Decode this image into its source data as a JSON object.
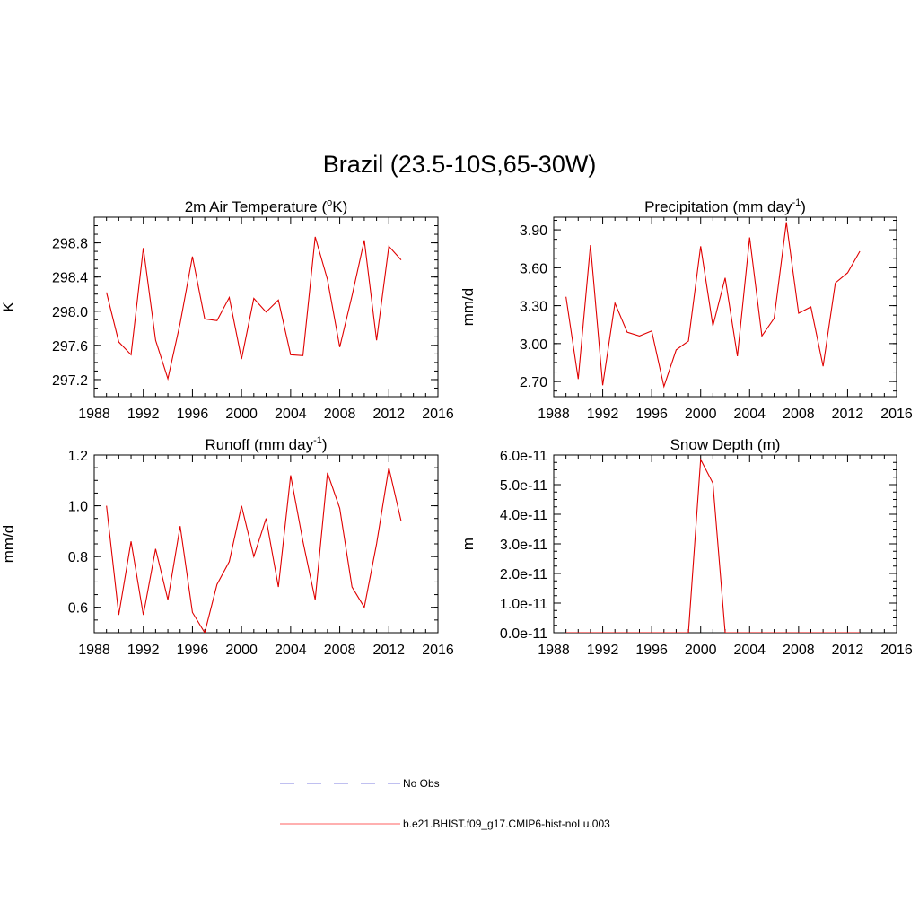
{
  "title": "Brazil (23.5-10S,65-30W)",
  "colors": {
    "model": "#e00000",
    "obs": "#9a9ae8",
    "axis": "#000000"
  },
  "legend": [
    {
      "label": "No Obs",
      "style": "dashed",
      "color": "#9a9ae8"
    },
    {
      "label": "b.e21.BHIST.f09_g17.CMIP6-hist-noLu.003",
      "style": "solid",
      "color": "#ff8080"
    }
  ],
  "chart_data": [
    {
      "type": "line",
      "title": "2m Air Temperature (°K)",
      "title_parts": {
        "pre": "2m Air Temperature (",
        "sup": "o",
        "post": "K)"
      },
      "ylabel": "K",
      "xlim": [
        1988,
        2016
      ],
      "ylim": [
        297.0,
        299.1
      ],
      "xticks": [
        1988,
        1992,
        1996,
        2000,
        2004,
        2008,
        2012,
        2016
      ],
      "yticks": [
        297.2,
        297.6,
        298.0,
        298.4,
        298.8
      ],
      "ytick_labels": [
        "297.2",
        "297.6",
        "298.0",
        "298.4",
        "298.8"
      ],
      "yminor_step": 0.1,
      "x": [
        1989,
        1990,
        1991,
        1992,
        1993,
        1994,
        1995,
        1996,
        1997,
        1998,
        1999,
        2000,
        2001,
        2002,
        2003,
        2004,
        2005,
        2006,
        2007,
        2008,
        2009,
        2010,
        2011,
        2012,
        2013
      ],
      "series": [
        {
          "values": [
            298.22,
            297.64,
            297.49,
            298.74,
            297.66,
            297.21,
            297.86,
            298.64,
            297.91,
            297.89,
            298.16,
            297.44,
            298.15,
            297.99,
            298.13,
            297.49,
            297.48,
            298.87,
            298.37,
            297.58,
            298.18,
            298.83,
            297.66,
            298.76,
            298.6
          ]
        }
      ]
    },
    {
      "type": "line",
      "title": "Precipitation (mm day-1)",
      "title_parts": {
        "pre": "Precipitation (mm day",
        "sup": "-1",
        "post": ")"
      },
      "ylabel": "mm/d",
      "xlim": [
        1988,
        2016
      ],
      "ylim": [
        2.58,
        4.0
      ],
      "xticks": [
        1988,
        1992,
        1996,
        2000,
        2004,
        2008,
        2012,
        2016
      ],
      "yticks": [
        2.7,
        3.0,
        3.3,
        3.6,
        3.9
      ],
      "ytick_labels": [
        "2.70",
        "3.00",
        "3.30",
        "3.60",
        "3.90"
      ],
      "yminor_step": 0.075,
      "x": [
        1989,
        1990,
        1991,
        1992,
        1993,
        1994,
        1995,
        1996,
        1997,
        1998,
        1999,
        2000,
        2001,
        2002,
        2003,
        2004,
        2005,
        2006,
        2007,
        2008,
        2009,
        2010,
        2011,
        2012,
        2013
      ],
      "series": [
        {
          "values": [
            3.37,
            2.72,
            3.78,
            2.67,
            3.32,
            3.09,
            3.06,
            3.1,
            2.66,
            2.95,
            3.02,
            3.77,
            3.14,
            3.52,
            2.9,
            3.84,
            3.06,
            3.2,
            3.96,
            3.24,
            3.29,
            2.82,
            3.48,
            3.56,
            3.73
          ]
        }
      ]
    },
    {
      "type": "line",
      "title": "Runoff (mm day-1)",
      "title_parts": {
        "pre": "Runoff (mm day",
        "sup": "-1",
        "post": ")"
      },
      "ylabel": "mm/d",
      "xlim": [
        1988,
        2016
      ],
      "ylim": [
        0.5,
        1.2
      ],
      "xticks": [
        1988,
        1992,
        1996,
        2000,
        2004,
        2008,
        2012,
        2016
      ],
      "yticks": [
        0.6,
        0.8,
        1.0,
        1.2
      ],
      "ytick_labels": [
        "0.6",
        "0.8",
        "1.0",
        "1.2"
      ],
      "yminor_step": 0.05,
      "x": [
        1989,
        1990,
        1991,
        1992,
        1993,
        1994,
        1995,
        1996,
        1997,
        1998,
        1999,
        2000,
        2001,
        2002,
        2003,
        2004,
        2005,
        2006,
        2007,
        2008,
        2009,
        2010,
        2011,
        2012,
        2013
      ],
      "series": [
        {
          "values": [
            1.0,
            0.57,
            0.86,
            0.57,
            0.83,
            0.63,
            0.92,
            0.58,
            0.5,
            0.69,
            0.78,
            1.0,
            0.8,
            0.95,
            0.68,
            1.12,
            0.86,
            0.63,
            1.13,
            0.99,
            0.68,
            0.6,
            0.85,
            1.15,
            0.94
          ]
        }
      ]
    },
    {
      "type": "line",
      "title": "Snow Depth (m)",
      "title_parts": {
        "pre": "Snow Depth (m)",
        "sup": "",
        "post": ""
      },
      "ylabel": "m",
      "xlim": [
        1988,
        2016
      ],
      "ylim": [
        0,
        6e-11
      ],
      "xticks": [
        1988,
        1992,
        1996,
        2000,
        2004,
        2008,
        2012,
        2016
      ],
      "yticks": [
        0,
        1e-11,
        2e-11,
        3e-11,
        4e-11,
        5e-11,
        6e-11
      ],
      "ytick_labels": [
        "0.0e-11",
        "1.0e-11",
        "2.0e-11",
        "3.0e-11",
        "4.0e-11",
        "5.0e-11",
        "6.0e-11"
      ],
      "yminor_step": 2.5e-12,
      "x": [
        1989,
        1990,
        1991,
        1992,
        1993,
        1994,
        1995,
        1996,
        1997,
        1998,
        1999,
        2000,
        2001,
        2002,
        2003,
        2004,
        2005,
        2006,
        2007,
        2008,
        2009,
        2010,
        2011,
        2012,
        2013
      ],
      "series": [
        {
          "values": [
            0,
            0,
            0,
            0,
            0,
            0,
            0,
            0,
            0,
            0,
            0,
            5.85e-11,
            5.05e-11,
            0,
            0,
            0,
            0,
            0,
            0,
            0,
            0,
            0,
            0,
            0,
            0
          ]
        }
      ]
    }
  ]
}
